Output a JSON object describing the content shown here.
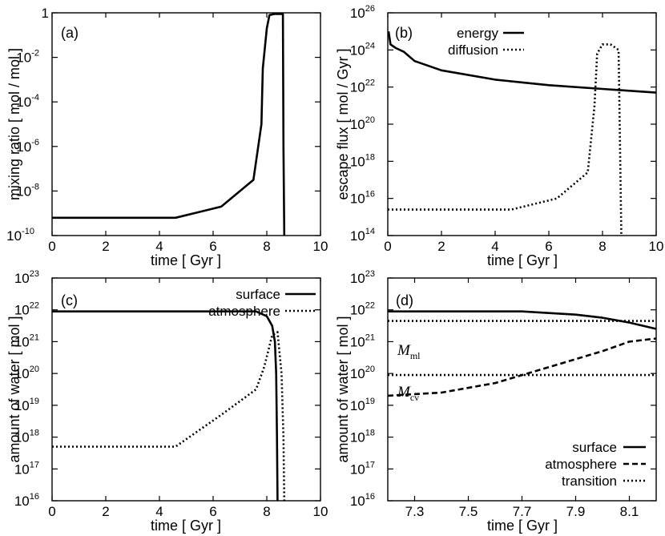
{
  "chart_data": [
    {
      "type": "line",
      "panel": "(a)",
      "xlabel": "time [ Gyr ]",
      "ylabel": "mixing ratio  [ mol / mol ]",
      "xlim": [
        0,
        10
      ],
      "ylim_log10": [
        -10,
        0
      ],
      "x_ticks": [
        "0",
        "2",
        "4",
        "6",
        "8",
        "10"
      ],
      "y_ticks": [
        {
          "base": "10",
          "exp": "-10"
        },
        {
          "base": "10",
          "exp": "-8"
        },
        {
          "base": "10",
          "exp": "-6"
        },
        {
          "base": "10",
          "exp": "-4"
        },
        {
          "base": "10",
          "exp": "-2"
        },
        {
          "base": "1",
          "exp": ""
        }
      ],
      "series": [
        {
          "name": "mixing ratio",
          "style": "solid",
          "x": [
            0,
            4.6,
            6.3,
            7.5,
            7.8,
            7.85,
            8.0,
            8.1,
            8.3,
            8.6,
            8.62,
            8.65
          ],
          "log10y": [
            -9.2,
            -9.2,
            -8.7,
            -7.5,
            -5.0,
            -2.5,
            -0.7,
            -0.1,
            -0.05,
            -0.05,
            -6,
            -10
          ]
        }
      ]
    },
    {
      "type": "line",
      "panel": "(b)",
      "xlabel": "time [ Gyr ]",
      "ylabel": "escape flux  [ mol / Gyr ]",
      "xlim": [
        0,
        10
      ],
      "ylim_log10": [
        14,
        26
      ],
      "x_ticks": [
        "0",
        "2",
        "4",
        "6",
        "8",
        "10"
      ],
      "y_ticks": [
        {
          "base": "10",
          "exp": "14"
        },
        {
          "base": "10",
          "exp": "16"
        },
        {
          "base": "10",
          "exp": "18"
        },
        {
          "base": "10",
          "exp": "20"
        },
        {
          "base": "10",
          "exp": "22"
        },
        {
          "base": "10",
          "exp": "24"
        },
        {
          "base": "10",
          "exp": "26"
        }
      ],
      "legend": [
        "energy",
        "diffusion"
      ],
      "series": [
        {
          "name": "energy",
          "style": "solid",
          "x": [
            0.03,
            0.1,
            0.3,
            0.6,
            1,
            2,
            4,
            6,
            8,
            10
          ],
          "log10y": [
            25.0,
            24.3,
            24.1,
            23.9,
            23.4,
            22.9,
            22.4,
            22.1,
            21.9,
            21.7
          ]
        },
        {
          "name": "diffusion",
          "style": "dotted",
          "x": [
            0,
            4.6,
            6.3,
            7.45,
            7.7,
            7.8,
            8.0,
            8.3,
            8.6,
            8.65,
            8.7
          ],
          "log10y": [
            15.4,
            15.4,
            16.0,
            17.4,
            21.0,
            23.8,
            24.3,
            24.3,
            24.0,
            19.0,
            14.0
          ]
        }
      ]
    },
    {
      "type": "line",
      "panel": "(c)",
      "xlabel": "time [ Gyr ]",
      "ylabel": "amount of water [ mol ]",
      "xlim": [
        0,
        10
      ],
      "ylim_log10": [
        16,
        23
      ],
      "x_ticks": [
        "0",
        "2",
        "4",
        "6",
        "8",
        "10"
      ],
      "y_ticks": [
        {
          "base": "10",
          "exp": "16"
        },
        {
          "base": "10",
          "exp": "17"
        },
        {
          "base": "10",
          "exp": "18"
        },
        {
          "base": "10",
          "exp": "19"
        },
        {
          "base": "10",
          "exp": "20"
        },
        {
          "base": "10",
          "exp": "21"
        },
        {
          "base": "10",
          "exp": "22"
        },
        {
          "base": "10",
          "exp": "23"
        }
      ],
      "legend": [
        "surface",
        "atmosphere"
      ],
      "series": [
        {
          "name": "surface",
          "style": "solid",
          "x": [
            0,
            7.6,
            8.0,
            8.2,
            8.3,
            8.35,
            8.38,
            8.4
          ],
          "log10y": [
            21.95,
            21.95,
            21.8,
            21.5,
            21.0,
            20.0,
            18.0,
            16.0
          ]
        },
        {
          "name": "atmosphere",
          "style": "dotted",
          "x": [
            0,
            4.6,
            6.3,
            7.6,
            7.9,
            8.2,
            8.4,
            8.55,
            8.62,
            8.65
          ],
          "log10y": [
            17.7,
            17.7,
            18.7,
            19.5,
            20.2,
            21.2,
            21.3,
            20.0,
            18.0,
            16.0
          ]
        }
      ]
    },
    {
      "type": "line",
      "panel": "(d)",
      "xlabel": "time [ Gyr ]",
      "ylabel": "amount of water [ mol ]",
      "xlim": [
        7.2,
        8.2
      ],
      "ylim_log10": [
        16,
        23
      ],
      "x_ticks": [
        "7.3",
        "7.5",
        "7.7",
        "7.9",
        "8.1"
      ],
      "x_tick_values": [
        7.3,
        7.5,
        7.7,
        7.9,
        8.1
      ],
      "y_ticks": [
        {
          "base": "10",
          "exp": "16"
        },
        {
          "base": "10",
          "exp": "17"
        },
        {
          "base": "10",
          "exp": "18"
        },
        {
          "base": "10",
          "exp": "19"
        },
        {
          "base": "10",
          "exp": "20"
        },
        {
          "base": "10",
          "exp": "21"
        },
        {
          "base": "10",
          "exp": "22"
        },
        {
          "base": "10",
          "exp": "23"
        }
      ],
      "legend": [
        "surface",
        "transition"
      ],
      "legend_dashed": "atmosphere",
      "annotations": [
        {
          "text": "M",
          "sub": "ml"
        },
        {
          "text": "M",
          "sub": "cv"
        }
      ],
      "series": [
        {
          "name": "surface",
          "style": "solid",
          "x": [
            7.2,
            7.7,
            7.9,
            8.0,
            8.1,
            8.2
          ],
          "log10y": [
            21.95,
            21.95,
            21.85,
            21.75,
            21.6,
            21.4
          ]
        },
        {
          "name": "atmosphere",
          "style": "dashed",
          "x": [
            7.2,
            7.4,
            7.6,
            7.8,
            8.0,
            8.1,
            8.2
          ],
          "log10y": [
            19.3,
            19.4,
            19.7,
            20.2,
            20.7,
            21.0,
            21.1
          ]
        },
        {
          "name": "M_ml",
          "style": "dotted",
          "x": [
            7.2,
            8.2
          ],
          "log10y": [
            21.65,
            21.65
          ]
        },
        {
          "name": "M_cv",
          "style": "dotted",
          "x": [
            7.2,
            8.2
          ],
          "log10y": [
            19.95,
            19.95
          ]
        }
      ]
    }
  ]
}
